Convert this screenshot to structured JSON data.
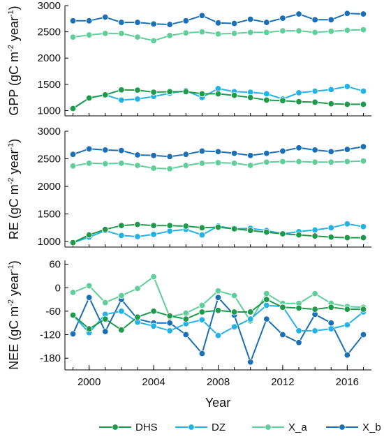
{
  "chart_data": {
    "type": "line",
    "xlabel": "Year",
    "x": [
      1999,
      2000,
      2001,
      2002,
      2003,
      2004,
      2005,
      2006,
      2007,
      2008,
      2009,
      2010,
      2011,
      2012,
      2013,
      2014,
      2015,
      2016,
      2017
    ],
    "x_ticks": [
      "2000",
      "2004",
      "2008",
      "2012",
      "2016"
    ],
    "x_tick_values": [
      2000,
      2004,
      2008,
      2012,
      2016
    ],
    "xlim": [
      1998.5,
      2017.5
    ],
    "colors": {
      "DHS": "#1f9a4c",
      "DZ": "#22b2e6",
      "X_a": "#5fce9a",
      "X_b": "#1b6fb4"
    },
    "legend": {
      "placement": "bottom",
      "entries": [
        "DHS",
        "DZ",
        "X_a",
        "X_b"
      ]
    },
    "panels": [
      {
        "ylabel": "GPP (gC m",
        "ylabel_sup1": "-2",
        "ylabel_mid": " year",
        "ylabel_sup2": "-1",
        "ylabel_end": ")",
        "ylim": [
          900,
          3000
        ],
        "yticks": [
          1000,
          1500,
          2000,
          2500,
          3000
        ],
        "series": [
          {
            "name": "DHS",
            "values": [
              1040,
              1240,
              1300,
              1395,
              1390,
              1350,
              1360,
              1360,
              1320,
              1320,
              1290,
              1250,
              1200,
              1190,
              1170,
              1160,
              1130,
              1120,
              1120
            ]
          },
          {
            "name": "DZ",
            "values": [
              1040,
              1240,
              1300,
              1200,
              1220,
              1270,
              1330,
              1380,
              1250,
              1420,
              1360,
              1350,
              1320,
              1220,
              1340,
              1370,
              1400,
              1460,
              1370
            ]
          },
          {
            "name": "X_a",
            "values": [
              2400,
              2440,
              2470,
              2470,
              2400,
              2330,
              2430,
              2480,
              2500,
              2460,
              2470,
              2490,
              2490,
              2520,
              2520,
              2490,
              2510,
              2530,
              2540
            ]
          },
          {
            "name": "X_b",
            "values": [
              2710,
              2710,
              2780,
              2680,
              2680,
              2650,
              2640,
              2710,
              2810,
              2670,
              2660,
              2740,
              2680,
              2760,
              2840,
              2730,
              2730,
              2850,
              2840
            ]
          }
        ]
      },
      {
        "ylabel": "RE (gC m",
        "ylabel_sup1": "-2",
        "ylabel_mid": " year",
        "ylabel_sup2": "-1",
        "ylabel_end": ")",
        "ylim": [
          900,
          3000
        ],
        "yticks": [
          1000,
          1500,
          2000,
          2500,
          3000
        ],
        "series": [
          {
            "name": "DHS",
            "values": [
              980,
              1120,
              1220,
              1290,
              1310,
              1290,
              1290,
              1280,
              1250,
              1260,
              1230,
              1200,
              1170,
              1140,
              1120,
              1100,
              1080,
              1070,
              1070
            ]
          },
          {
            "name": "DZ",
            "values": [
              980,
              1080,
              1200,
              1110,
              1090,
              1130,
              1190,
              1220,
              1120,
              1280,
              1230,
              1240,
              1200,
              1140,
              1180,
              1210,
              1250,
              1320,
              1270
            ]
          },
          {
            "name": "X_a",
            "values": [
              2370,
              2420,
              2410,
              2420,
              2380,
              2330,
              2320,
              2380,
              2420,
              2430,
              2420,
              2380,
              2440,
              2450,
              2450,
              2440,
              2440,
              2450,
              2460
            ]
          },
          {
            "name": "X_b",
            "values": [
              2580,
              2680,
              2660,
              2650,
              2570,
              2560,
              2540,
              2580,
              2640,
              2630,
              2600,
              2560,
              2600,
              2640,
              2700,
              2660,
              2630,
              2670,
              2720
            ]
          }
        ]
      },
      {
        "ylabel": "NEE (gC m",
        "ylabel_sup1": "-2",
        "ylabel_mid": " year",
        "ylabel_sup2": "-1",
        "ylabel_end": ")",
        "ylim": [
          -210,
          70
        ],
        "yticks": [
          -180,
          -120,
          -60,
          0,
          60
        ],
        "series": [
          {
            "name": "DHS",
            "values": [
              -70,
              -105,
              -80,
              -108,
              -75,
              -60,
              -72,
              -80,
              -62,
              -58,
              -62,
              -62,
              -30,
              -50,
              -52,
              -55,
              -50,
              -55,
              -55
            ]
          },
          {
            "name": "DZ",
            "values": [
              -70,
              -115,
              -68,
              -60,
              -88,
              -98,
              -110,
              -92,
              -82,
              -122,
              -100,
              -80,
              -45,
              -48,
              -110,
              -110,
              -105,
              -95,
              -62
            ]
          },
          {
            "name": "X_a",
            "values": [
              -12,
              5,
              -38,
              -20,
              -2,
              28,
              -75,
              -65,
              -45,
              -8,
              -20,
              -85,
              -15,
              -40,
              -40,
              -15,
              -40,
              -48,
              -50
            ]
          },
          {
            "name": "X_b",
            "values": [
              -118,
              -25,
              -112,
              -30,
              -80,
              -90,
              -90,
              -120,
              -168,
              -25,
              -70,
              -190,
              -80,
              -120,
              -140,
              -68,
              -90,
              -172,
              -120
            ]
          }
        ]
      }
    ]
  }
}
